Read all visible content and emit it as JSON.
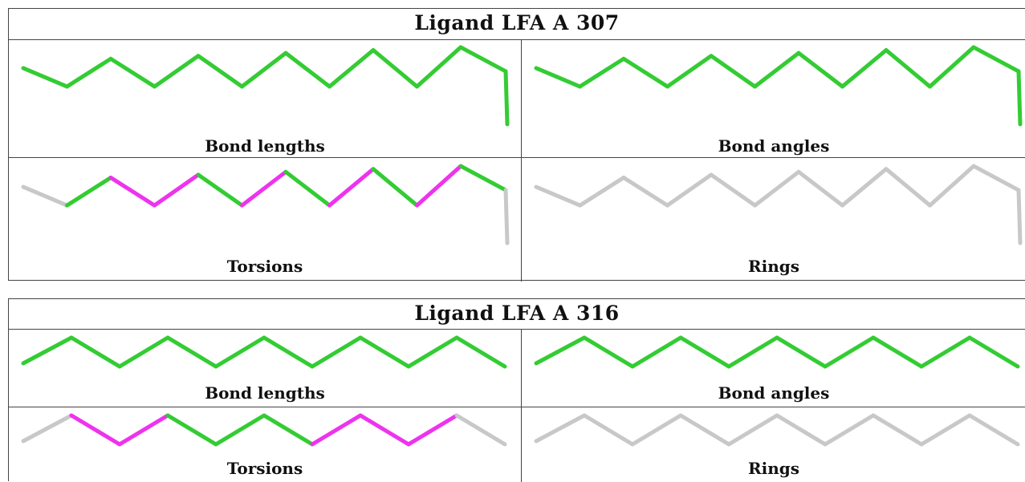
{
  "colors": {
    "pass": "#33cc33",
    "fail": "#ee33ee",
    "na": "#c8c8c8",
    "border": "#444444"
  },
  "ligands": [
    {
      "title": "Ligand LFA A 307",
      "panels": [
        {
          "label": "Bond lengths",
          "segments": [
            "pass",
            "pass",
            "pass",
            "pass",
            "pass",
            "pass",
            "pass",
            "pass",
            "pass",
            "pass",
            "pass",
            "pass"
          ]
        },
        {
          "label": "Bond angles",
          "segments": [
            "pass",
            "pass",
            "pass",
            "pass",
            "pass",
            "pass",
            "pass",
            "pass",
            "pass",
            "pass",
            "pass",
            "pass"
          ]
        },
        {
          "label": "Torsions",
          "segments": [
            "na",
            "pass",
            "fail",
            "fail",
            "pass",
            "fail",
            "pass",
            "fail",
            "pass",
            "fail",
            "pass",
            "na"
          ]
        },
        {
          "label": "Rings",
          "segments": [
            "na",
            "na",
            "na",
            "na",
            "na",
            "na",
            "na",
            "na",
            "na",
            "na",
            "na",
            "na"
          ]
        }
      ]
    },
    {
      "title": "Ligand LFA A 316",
      "panels": [
        {
          "label": "Bond lengths",
          "segments": [
            "pass",
            "pass",
            "pass",
            "pass",
            "pass",
            "pass",
            "pass",
            "pass",
            "pass",
            "pass"
          ]
        },
        {
          "label": "Bond angles",
          "segments": [
            "pass",
            "pass",
            "pass",
            "pass",
            "pass",
            "pass",
            "pass",
            "pass",
            "pass",
            "pass"
          ]
        },
        {
          "label": "Torsions",
          "segments": [
            "na",
            "fail",
            "fail",
            "pass",
            "pass",
            "pass",
            "fail",
            "fail",
            "fail",
            "na"
          ]
        },
        {
          "label": "Rings",
          "segments": [
            "na",
            "na",
            "na",
            "na",
            "na",
            "na",
            "na",
            "na",
            "na",
            "na"
          ]
        }
      ]
    }
  ]
}
